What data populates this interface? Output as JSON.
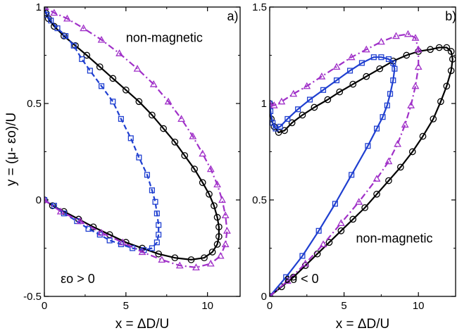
{
  "figure": {
    "shared_ylabel": "y = (μ- εo)/U"
  },
  "chart_data": [
    {
      "panel": "a)",
      "type": "line",
      "xlabel": "x = ΔD/U",
      "ylabel": "y = (μ- εo)/U",
      "xlim": [
        0,
        12
      ],
      "ylim": [
        -0.5,
        1.0
      ],
      "x_ticks": [
        0,
        5,
        10
      ],
      "y_ticks": [
        -0.5,
        0,
        0.5,
        1
      ],
      "y_tick_labels": [
        "-0.5",
        "0",
        "0.5",
        "1"
      ],
      "annotations": [
        {
          "text": "non-magnetic",
          "anchor": [
            5.0,
            0.82
          ]
        },
        {
          "text": "εo > 0",
          "anchor": [
            1.0,
            -0.43
          ]
        },
        {
          "text": "a)",
          "anchor": [
            11.2,
            0.93
          ]
        }
      ],
      "series": [
        {
          "color": "#000000",
          "style": "solid",
          "marker": "circle",
          "points": [
            [
              0.0,
              0.0
            ],
            [
              0.5,
              -0.03
            ],
            [
              1.2,
              -0.06
            ],
            [
              2.1,
              -0.1
            ],
            [
              3.0,
              -0.14
            ],
            [
              4.0,
              -0.18
            ],
            [
              5.0,
              -0.22
            ],
            [
              6.0,
              -0.25
            ],
            [
              7.0,
              -0.28
            ],
            [
              8.0,
              -0.3
            ],
            [
              9.0,
              -0.31
            ],
            [
              9.8,
              -0.3
            ],
            [
              10.3,
              -0.27
            ],
            [
              10.6,
              -0.23
            ],
            [
              10.7,
              -0.19
            ],
            [
              10.7,
              -0.14
            ],
            [
              10.6,
              -0.09
            ],
            [
              10.4,
              -0.03
            ],
            [
              10.1,
              0.03
            ],
            [
              9.7,
              0.09
            ],
            [
              9.2,
              0.16
            ],
            [
              8.6,
              0.23
            ],
            [
              8.0,
              0.3
            ],
            [
              7.3,
              0.37
            ],
            [
              6.6,
              0.44
            ],
            [
              5.8,
              0.51
            ],
            [
              5.0,
              0.57
            ],
            [
              4.2,
              0.63
            ],
            [
              3.4,
              0.69
            ],
            [
              2.6,
              0.75
            ],
            [
              1.9,
              0.8
            ],
            [
              1.2,
              0.85
            ],
            [
              0.6,
              0.9
            ],
            [
              0.25,
              0.94
            ],
            [
              0.08,
              0.97
            ],
            [
              0.0,
              1.0
            ]
          ]
        },
        {
          "color": "#1f3fd0",
          "style": "dashed",
          "marker": "square",
          "points": [
            [
              0.0,
              0.0
            ],
            [
              0.6,
              -0.03
            ],
            [
              1.2,
              -0.07
            ],
            [
              2.0,
              -0.11
            ],
            [
              2.7,
              -0.15
            ],
            [
              3.4,
              -0.18
            ],
            [
              4.0,
              -0.21
            ],
            [
              4.7,
              -0.23
            ],
            [
              5.4,
              -0.25
            ],
            [
              6.1,
              -0.26
            ],
            [
              6.6,
              -0.25
            ],
            [
              6.9,
              -0.22
            ],
            [
              7.0,
              -0.18
            ],
            [
              7.0,
              -0.13
            ],
            [
              6.9,
              -0.07
            ],
            [
              6.8,
              -0.01
            ],
            [
              6.6,
              0.05
            ],
            [
              6.3,
              0.13
            ],
            [
              5.8,
              0.22
            ],
            [
              5.3,
              0.32
            ],
            [
              4.7,
              0.42
            ],
            [
              4.2,
              0.51
            ],
            [
              3.5,
              0.59
            ],
            [
              2.8,
              0.67
            ],
            [
              2.3,
              0.73
            ],
            [
              1.8,
              0.8
            ],
            [
              1.3,
              0.85
            ],
            [
              0.8,
              0.89
            ],
            [
              0.4,
              0.93
            ],
            [
              0.15,
              0.96
            ],
            [
              0.0,
              1.0
            ]
          ]
        },
        {
          "color": "#a030c8",
          "style": "dashdot",
          "marker": "triangle",
          "points": [
            [
              0.0,
              0.0
            ],
            [
              1.0,
              -0.06
            ],
            [
              2.2,
              -0.11
            ],
            [
              3.5,
              -0.17
            ],
            [
              4.8,
              -0.22
            ],
            [
              6.0,
              -0.27
            ],
            [
              7.2,
              -0.31
            ],
            [
              8.3,
              -0.34
            ],
            [
              9.3,
              -0.35
            ],
            [
              10.2,
              -0.33
            ],
            [
              10.8,
              -0.29
            ],
            [
              11.1,
              -0.23
            ],
            [
              11.2,
              -0.16
            ],
            [
              11.1,
              -0.08
            ],
            [
              10.9,
              0.0
            ],
            [
              10.6,
              0.08
            ],
            [
              10.2,
              0.16
            ],
            [
              9.7,
              0.24
            ],
            [
              9.1,
              0.33
            ],
            [
              8.4,
              0.42
            ],
            [
              7.6,
              0.51
            ],
            [
              6.7,
              0.6
            ],
            [
              5.7,
              0.68
            ],
            [
              4.6,
              0.76
            ],
            [
              3.5,
              0.83
            ],
            [
              2.4,
              0.89
            ],
            [
              1.4,
              0.94
            ],
            [
              0.6,
              0.97
            ],
            [
              0.0,
              1.0
            ]
          ]
        }
      ]
    },
    {
      "panel": "b)",
      "type": "line",
      "xlabel": "x = ΔD/U",
      "ylabel": "",
      "xlim": [
        0,
        12.5
      ],
      "ylim": [
        0,
        1.5
      ],
      "x_ticks": [
        0,
        5,
        10
      ],
      "y_ticks": [
        0,
        0.5,
        1,
        1.5
      ],
      "y_tick_labels": [
        "0",
        "0.5",
        "1",
        "1.5"
      ],
      "annotations": [
        {
          "text": "non-magnetic",
          "anchor": [
            5.8,
            0.28
          ]
        },
        {
          "text": "εo < 0",
          "anchor": [
            1.0,
            0.07
          ]
        },
        {
          "text": "b)",
          "anchor": [
            11.8,
            1.43
          ]
        }
      ],
      "series": [
        {
          "color": "#000000",
          "style": "solid",
          "marker": "circle",
          "points": [
            [
              0.0,
              0.0
            ],
            [
              0.8,
              0.05
            ],
            [
              1.6,
              0.1
            ],
            [
              2.4,
              0.16
            ],
            [
              3.2,
              0.22
            ],
            [
              4.0,
              0.28
            ],
            [
              4.8,
              0.34
            ],
            [
              5.6,
              0.4
            ],
            [
              6.4,
              0.46
            ],
            [
              7.2,
              0.53
            ],
            [
              8.0,
              0.6
            ],
            [
              8.8,
              0.67
            ],
            [
              9.6,
              0.75
            ],
            [
              10.3,
              0.83
            ],
            [
              11.0,
              0.92
            ],
            [
              11.5,
              1.01
            ],
            [
              11.9,
              1.09
            ],
            [
              12.2,
              1.17
            ],
            [
              12.3,
              1.23
            ],
            [
              12.2,
              1.27
            ],
            [
              11.9,
              1.29
            ],
            [
              11.4,
              1.29
            ],
            [
              10.8,
              1.28
            ],
            [
              10.0,
              1.27
            ],
            [
              9.2,
              1.25
            ],
            [
              8.3,
              1.22
            ],
            [
              7.4,
              1.18
            ],
            [
              6.5,
              1.14
            ],
            [
              5.6,
              1.1
            ],
            [
              4.7,
              1.06
            ],
            [
              3.9,
              1.02
            ],
            [
              3.0,
              0.98
            ],
            [
              2.2,
              0.94
            ],
            [
              1.5,
              0.9
            ],
            [
              1.0,
              0.86
            ],
            [
              0.6,
              0.85
            ],
            [
              0.3,
              0.88
            ],
            [
              0.1,
              0.92
            ],
            [
              0.0,
              1.0
            ]
          ]
        },
        {
          "color": "#1f3fd0",
          "style": "solid",
          "marker": "square",
          "points": [
            [
              0.0,
              0.0
            ],
            [
              1.1,
              0.1
            ],
            [
              2.2,
              0.21
            ],
            [
              3.3,
              0.34
            ],
            [
              4.4,
              0.48
            ],
            [
              5.5,
              0.63
            ],
            [
              6.6,
              0.78
            ],
            [
              7.2,
              0.87
            ],
            [
              7.6,
              0.93
            ],
            [
              7.9,
              0.99
            ],
            [
              8.1,
              1.05
            ],
            [
              8.3,
              1.12
            ],
            [
              8.4,
              1.18
            ],
            [
              8.3,
              1.21
            ],
            [
              8.0,
              1.23
            ],
            [
              7.5,
              1.24
            ],
            [
              7.0,
              1.24
            ],
            [
              6.2,
              1.21
            ],
            [
              5.4,
              1.17
            ],
            [
              4.5,
              1.12
            ],
            [
              3.6,
              1.07
            ],
            [
              2.7,
              1.02
            ],
            [
              1.9,
              0.97
            ],
            [
              1.2,
              0.92
            ],
            [
              0.7,
              0.88
            ],
            [
              0.4,
              0.87
            ],
            [
              0.2,
              0.9
            ],
            [
              0.05,
              0.96
            ],
            [
              0.0,
              1.0
            ]
          ]
        },
        {
          "color": "#a030c8",
          "style": "dashdot",
          "marker": "triangle",
          "points": [
            [
              0.0,
              0.0
            ],
            [
              1.2,
              0.08
            ],
            [
              2.4,
              0.17
            ],
            [
              3.6,
              0.27
            ],
            [
              4.8,
              0.38
            ],
            [
              6.0,
              0.49
            ],
            [
              7.2,
              0.61
            ],
            [
              8.0,
              0.7
            ],
            [
              8.6,
              0.79
            ],
            [
              9.1,
              0.89
            ],
            [
              9.5,
              0.99
            ],
            [
              9.8,
              1.09
            ],
            [
              10.0,
              1.19
            ],
            [
              10.0,
              1.28
            ],
            [
              9.8,
              1.34
            ],
            [
              9.3,
              1.36
            ],
            [
              8.5,
              1.35
            ],
            [
              7.5,
              1.32
            ],
            [
              6.5,
              1.28
            ],
            [
              5.5,
              1.24
            ],
            [
              4.5,
              1.19
            ],
            [
              3.5,
              1.14
            ],
            [
              2.5,
              1.09
            ],
            [
              1.6,
              1.05
            ],
            [
              0.8,
              1.01
            ],
            [
              0.3,
              0.99
            ],
            [
              0.0,
              1.0
            ]
          ]
        }
      ]
    }
  ]
}
